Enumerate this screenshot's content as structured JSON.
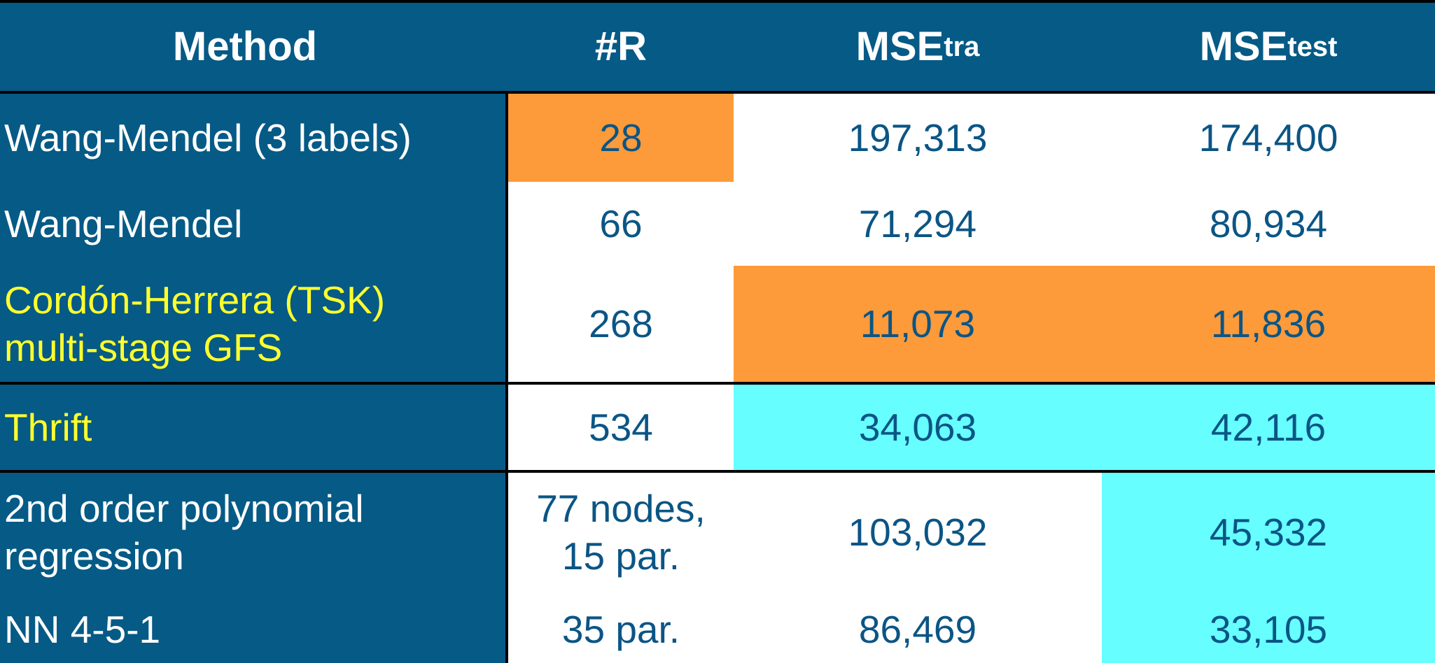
{
  "header": {
    "method": "Method",
    "rules": "#R",
    "mse_tra_main": "MSE",
    "mse_tra_sub": "tra",
    "mse_test_main": "MSE",
    "mse_test_sub": "test"
  },
  "rows": [
    {
      "method": "Wang-Mendel (3 labels)",
      "rules": "28",
      "mse_tra": "197,313",
      "mse_test": "174,400"
    },
    {
      "method": "Wang-Mendel",
      "rules": "66",
      "mse_tra": "71,294",
      "mse_test": "80,934"
    },
    {
      "method_line1": "Cordón-Herrera (TSK)",
      "method_line2": "multi-stage GFS",
      "rules": "268",
      "mse_tra": "11,073",
      "mse_test": "11,836"
    },
    {
      "method": "Thrift",
      "rules": "534",
      "mse_tra": "34,063",
      "mse_test": "42,116"
    },
    {
      "method_line1": "2nd order polynomial",
      "method_line2": "regression",
      "rules_line1": "77 nodes,",
      "rules_line2": "15 par.",
      "mse_tra": "103,032",
      "mse_test": "45,332"
    },
    {
      "method": "NN 4-5-1",
      "rules": "35 par.",
      "mse_tra": "86,469",
      "mse_test": "33,105"
    }
  ],
  "colors": {
    "header_bg": "#065a86",
    "highlight_orange": "#fd9a3a",
    "highlight_cyan": "#66feff",
    "method_text_white": "#ffffff",
    "method_text_yellow": "#ffff2e",
    "value_text": "#0b5585"
  }
}
